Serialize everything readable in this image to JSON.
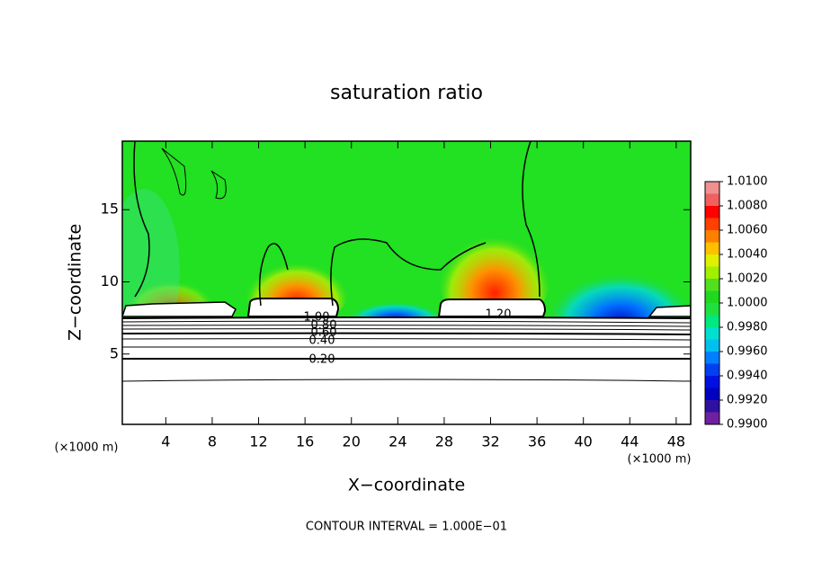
{
  "chart_data": {
    "type": "contour",
    "title": "saturation ratio",
    "x_label": "X−coordinate",
    "y_label": "Z−coordinate",
    "x_unit_left": "(×1000 m)",
    "x_unit_right": "(×1000 m)",
    "footer": "CONTOUR INTERVAL = 1.000E−01",
    "xlim": [
      0.25,
      49.25
    ],
    "ylim": [
      0.125,
      19.75
    ],
    "xticks": [
      4,
      8,
      12,
      16,
      20,
      24,
      28,
      32,
      36,
      40,
      44,
      48
    ],
    "yticks": [
      5,
      10,
      15
    ],
    "annotations": [
      "1.00",
      "0.80",
      "0.60",
      "0.40",
      "0.20",
      "1.20"
    ],
    "colorbar": {
      "clim": [
        0.99,
        1.01
      ],
      "ticks": [
        {
          "value": 0.99,
          "label": "0.9900"
        },
        {
          "value": 0.992,
          "label": "0.9920"
        },
        {
          "value": 0.994,
          "label": "0.9940"
        },
        {
          "value": 0.996,
          "label": "0.9960"
        },
        {
          "value": 0.998,
          "label": "0.9980"
        },
        {
          "value": 1.0,
          "label": "1.0000"
        },
        {
          "value": 1.002,
          "label": "1.0020"
        },
        {
          "value": 1.004,
          "label": "1.0040"
        },
        {
          "value": 1.006,
          "label": "1.0060"
        },
        {
          "value": 1.008,
          "label": "1.0080"
        },
        {
          "value": 1.01,
          "label": "1.0100"
        }
      ],
      "colors": [
        "#7020a0",
        "#3010a0",
        "#0000c0",
        "#0010e0",
        "#0040f0",
        "#0080ff",
        "#00c0f0",
        "#00e0d0",
        "#00e880",
        "#20e040",
        "#20d820",
        "#50e020",
        "#a0f000",
        "#e0f000",
        "#ffc000",
        "#ff8000",
        "#ff4000",
        "#ff0000",
        "#f06060",
        "#f09090"
      ]
    }
  }
}
